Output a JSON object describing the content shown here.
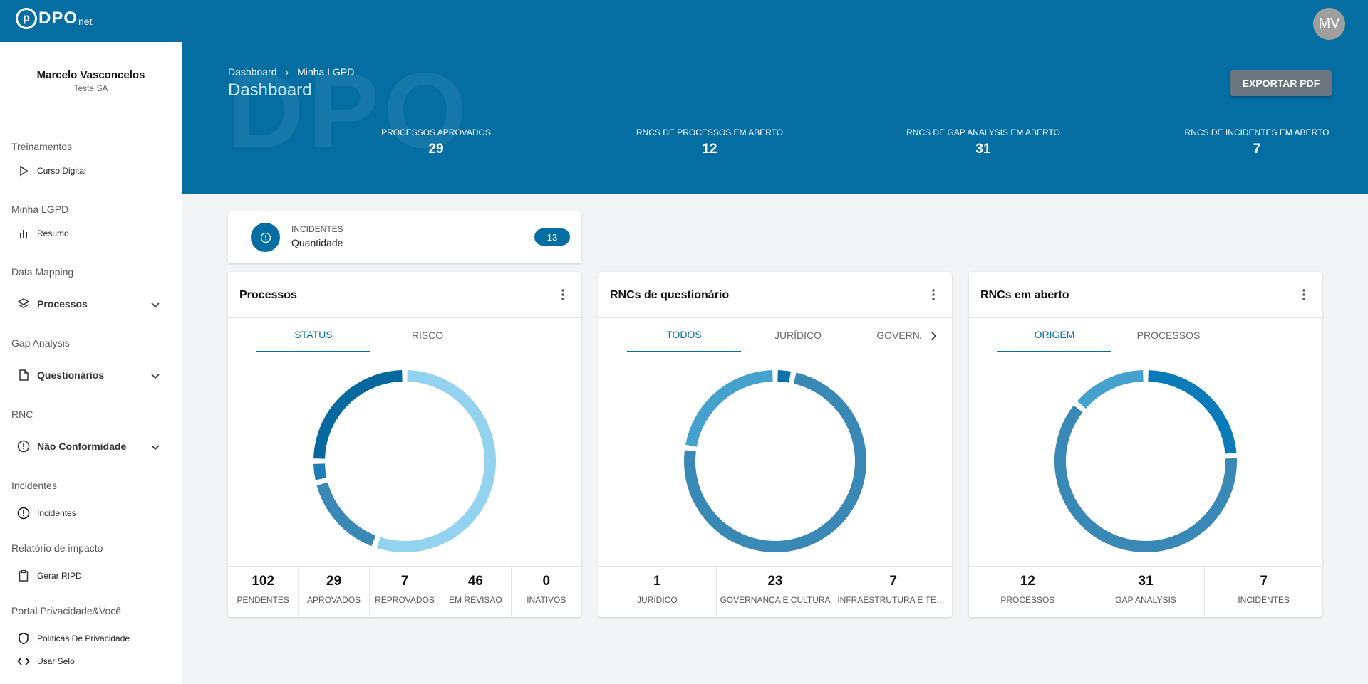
{
  "app": {
    "logo_letters": "DPO",
    "logo_sub": "net",
    "avatar_initials": "MV"
  },
  "user": {
    "name": "Marcelo Vasconcelos",
    "company": "Teste SA"
  },
  "sidebar": {
    "sections": [
      {
        "title": "Treinamentos",
        "items": [
          {
            "label": "Curso Digital",
            "icon": "play-icon"
          }
        ]
      },
      {
        "title": "Minha LGPD",
        "items": [
          {
            "label": "Resumo",
            "icon": "bar-chart-icon"
          }
        ]
      },
      {
        "title": "Data Mapping",
        "items": [
          {
            "label": "Processos",
            "icon": "layers-icon"
          }
        ]
      },
      {
        "title": "Gap Analysis",
        "items": [
          {
            "label": "Questionários",
            "icon": "document-icon"
          }
        ]
      },
      {
        "title": "RNC",
        "items": [
          {
            "label": "Não Conformidade",
            "icon": "alert-circle-icon"
          }
        ]
      },
      {
        "title": "Incidentes",
        "items": [
          {
            "label": "Incidentes",
            "icon": "alert-circle-icon"
          }
        ]
      },
      {
        "title": "Relatório de impacto",
        "items": [
          {
            "label": "Gerar RIPD",
            "icon": "clipboard-icon"
          }
        ]
      },
      {
        "title": "Portal Privacidade&Você",
        "items": [
          {
            "label": "Políticas De Privacidade",
            "icon": "shield-icon"
          },
          {
            "label": "Usar Selo",
            "icon": "code-icon"
          }
        ]
      }
    ]
  },
  "header": {
    "breadcrumb": [
      "Dashboard",
      "Minha LGPD"
    ],
    "title": "Dashboard",
    "export_label": "EXPORTAR PDF",
    "watermark": "DPO",
    "stats": [
      {
        "label": "PROCESSOS APROVADOS",
        "value": "29"
      },
      {
        "label": "RNCS DE PROCESSOS EM ABERTO",
        "value": "12"
      },
      {
        "label": "RNCS DE GAP ANALYSIS EM ABERTO",
        "value": "31"
      },
      {
        "label": "RNCS DE INCIDENTES EM ABERTO",
        "value": "7"
      }
    ]
  },
  "incidents_card": {
    "title": "INCIDENTES",
    "subtitle": "Quantidade",
    "count": "13"
  },
  "cards": [
    {
      "title": "Processos",
      "tabs": [
        "STATUS",
        "RISCO"
      ],
      "metrics": [
        {
          "value": "102",
          "label": "PENDENTES"
        },
        {
          "value": "29",
          "label": "APROVADOS"
        },
        {
          "value": "7",
          "label": "REPROVADOS"
        },
        {
          "value": "46",
          "label": "EM REVISÃO"
        },
        {
          "value": "0",
          "label": "INATIVOS"
        }
      ]
    },
    {
      "title": "RNCs de questionário",
      "tabs": [
        "TODOS",
        "JURÍDICO",
        "GOVERNANÇA"
      ],
      "metrics": [
        {
          "value": "1",
          "label": "JURÍDICO"
        },
        {
          "value": "23",
          "label": "GOVERNANÇA E CULTURA"
        },
        {
          "value": "7",
          "label": "INFRAESTRUTURA E TECNOLOGIA"
        }
      ]
    },
    {
      "title": "RNCs em aberto",
      "tabs": [
        "ORIGEM",
        "PROCESSOS"
      ],
      "metrics": [
        {
          "value": "12",
          "label": "PROCESSOS"
        },
        {
          "value": "31",
          "label": "GAP ANALYSIS"
        },
        {
          "value": "7",
          "label": "INCIDENTES"
        }
      ]
    }
  ],
  "chart_data": [
    {
      "type": "pie",
      "title": "Processos",
      "categories": [
        "PENDENTES",
        "APROVADOS",
        "REPROVADOS",
        "EM REVISÃO",
        "INATIVOS"
      ],
      "values": [
        102,
        29,
        7,
        46,
        0
      ],
      "colors": [
        "#94d3f0",
        "#3a88b6",
        "#1f7eb5",
        "#0569a0",
        "#046ea3"
      ]
    },
    {
      "type": "pie",
      "title": "RNCs de questionário",
      "categories": [
        "JURÍDICO",
        "GOVERNANÇA E CULTURA",
        "INFRAESTRUTURA E TECNOLOGIA"
      ],
      "values": [
        1,
        23,
        7
      ],
      "colors": [
        "#0b72ab",
        "#3a88b6",
        "#45a2cf"
      ]
    },
    {
      "type": "pie",
      "title": "RNCs em aberto",
      "categories": [
        "PROCESSOS",
        "GAP ANALYSIS",
        "INCIDENTES"
      ],
      "values": [
        12,
        31,
        7
      ],
      "colors": [
        "#0a7bb9",
        "#3a88b6",
        "#45a2cf"
      ]
    }
  ]
}
